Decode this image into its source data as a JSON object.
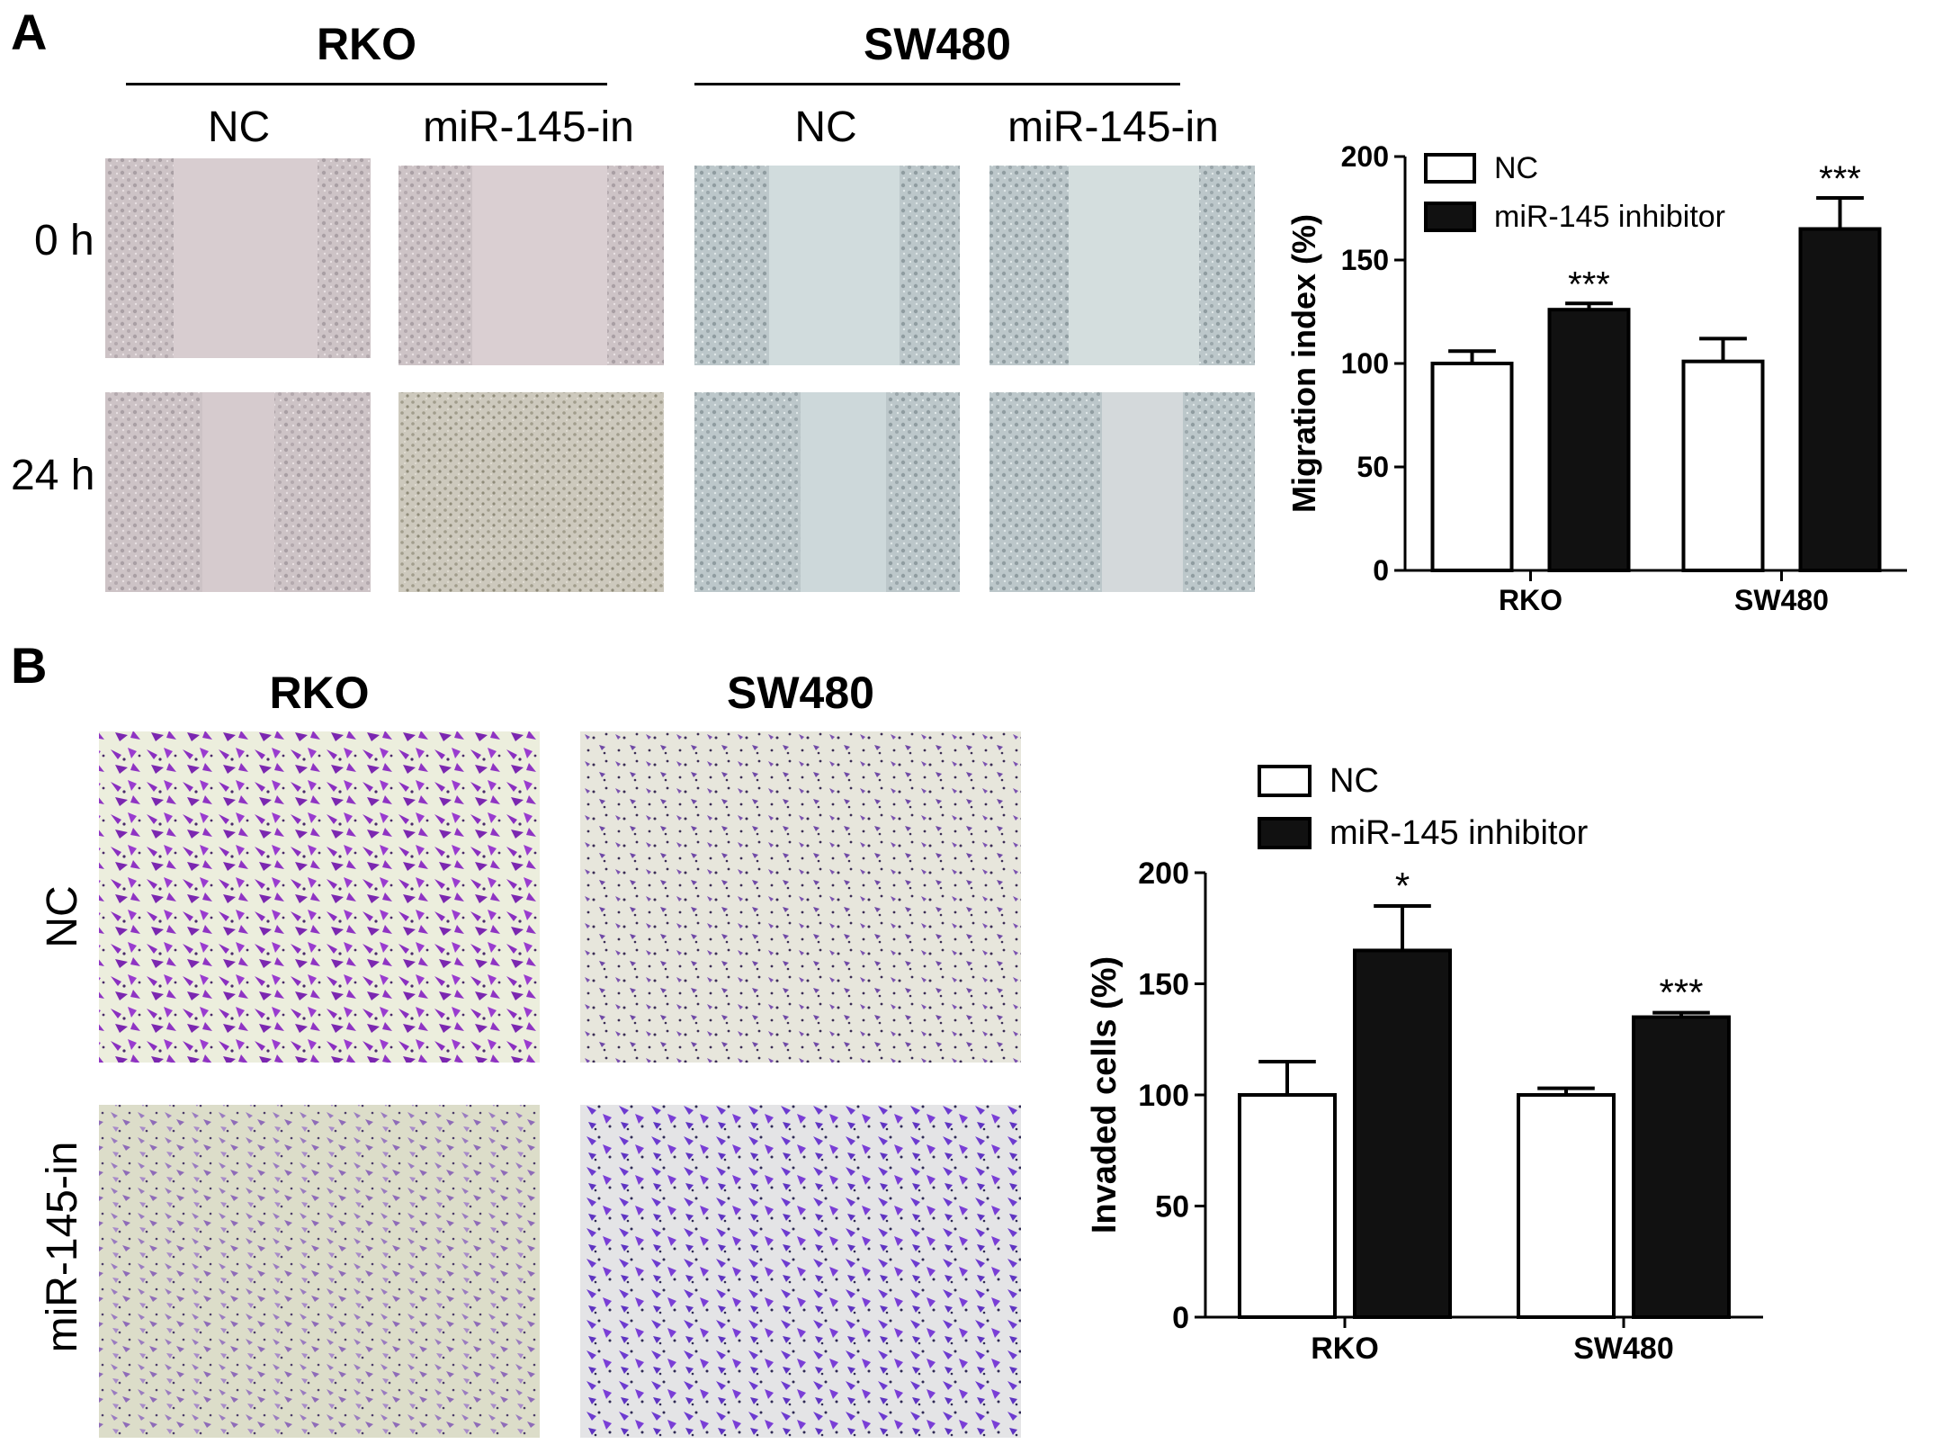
{
  "panel_a": {
    "letter": "A",
    "groups": [
      "RKO",
      "SW480"
    ],
    "conditions": [
      "NC",
      "miR-145-in",
      "NC",
      "miR-145-in"
    ],
    "rows": [
      "0 h",
      "24 h"
    ]
  },
  "panel_b": {
    "letter": "B",
    "groups": [
      "RKO",
      "SW480"
    ],
    "rows": [
      "NC",
      "miR-145-in"
    ]
  },
  "colors": {
    "rko_bg": "#d9cfcf",
    "sw480_bg": "#cfd9db",
    "rko_gap": "#dbd0d0",
    "sw480_gap": "#d4e0e0",
    "stain": "#7a2fb4",
    "transwell_bg": "#e6e7d2"
  },
  "chart_data": [
    {
      "type": "bar",
      "ylabel": "Migration index (%)",
      "categories": [
        "RKO",
        "SW480"
      ],
      "ylim": [
        0,
        200
      ],
      "yticks": [
        0,
        50,
        100,
        150,
        200
      ],
      "legend": "top-left",
      "series": [
        {
          "name": "NC",
          "fill": "#ffffff",
          "values": [
            100,
            101
          ],
          "errors": [
            6,
            11
          ],
          "sig": [
            "",
            ""
          ]
        },
        {
          "name": "miR-145 inhibitor",
          "fill": "#111111",
          "values": [
            126,
            165
          ],
          "errors": [
            3,
            15
          ],
          "sig": [
            "***",
            "***"
          ]
        }
      ]
    },
    {
      "type": "bar",
      "ylabel": "Invaded cells (%)",
      "categories": [
        "RKO",
        "SW480"
      ],
      "ylim": [
        0,
        200
      ],
      "yticks": [
        0,
        50,
        100,
        150,
        200
      ],
      "legend": "top-left",
      "series": [
        {
          "name": "NC",
          "fill": "#ffffff",
          "values": [
            100,
            100
          ],
          "errors": [
            15,
            3
          ],
          "sig": [
            "",
            ""
          ]
        },
        {
          "name": "miR-145 inhibitor",
          "fill": "#111111",
          "values": [
            165,
            135
          ],
          "errors": [
            20,
            2
          ],
          "sig": [
            "*",
            "***"
          ]
        }
      ]
    }
  ]
}
